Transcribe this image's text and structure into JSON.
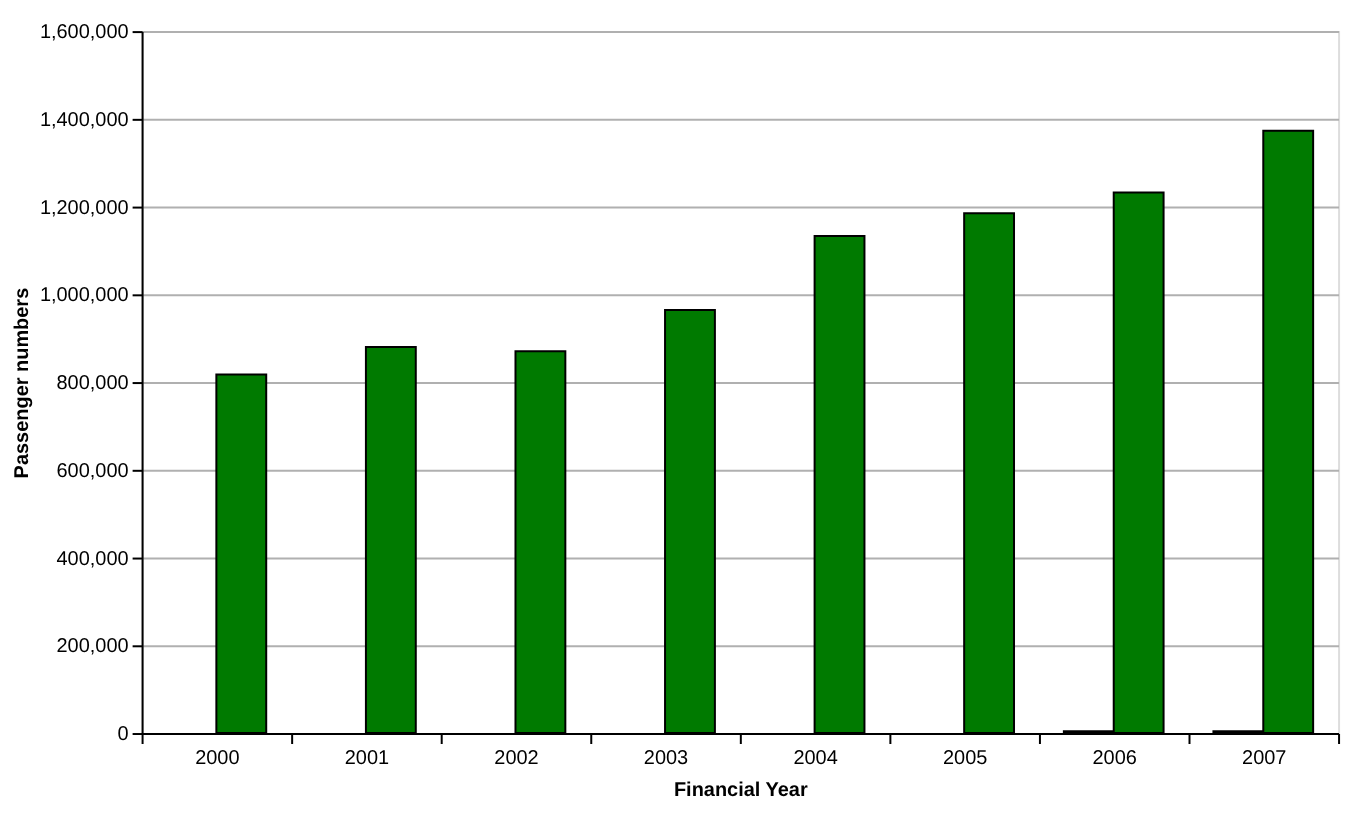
{
  "chart_data": {
    "type": "bar",
    "xlabel": "Financial Year",
    "ylabel": "Passenger numbers",
    "categories": [
      "2000",
      "2001",
      "2002",
      "2003",
      "2004",
      "2005",
      "2006",
      "2007"
    ],
    "series": [
      {
        "color": "#404040",
        "values": [
          null,
          null,
          null,
          null,
          null,
          null,
          4000,
          4000
        ]
      },
      {
        "color": "#007a00",
        "values": [
          817000,
          880000,
          870000,
          964000,
          1133000,
          1185000,
          1232000,
          1373000
        ]
      }
    ],
    "ylim": [
      0,
      1600000
    ],
    "yticks": [
      0,
      {
        "value": 200000,
        "label": "200,000"
      },
      {
        "value": 400000,
        "label": "400,000"
      },
      {
        "value": 600000,
        "label": "600,000"
      },
      {
        "value": 800000,
        "label": "800,000"
      },
      {
        "value": 1000000,
        "label": "1,000,000"
      },
      {
        "value": 1200000,
        "label": "1,200,000"
      },
      {
        "value": 1400000,
        "label": "1,400,000"
      },
      {
        "value": 1600000,
        "label": "1,600,000"
      }
    ],
    "grid": "y",
    "legend": false
  }
}
